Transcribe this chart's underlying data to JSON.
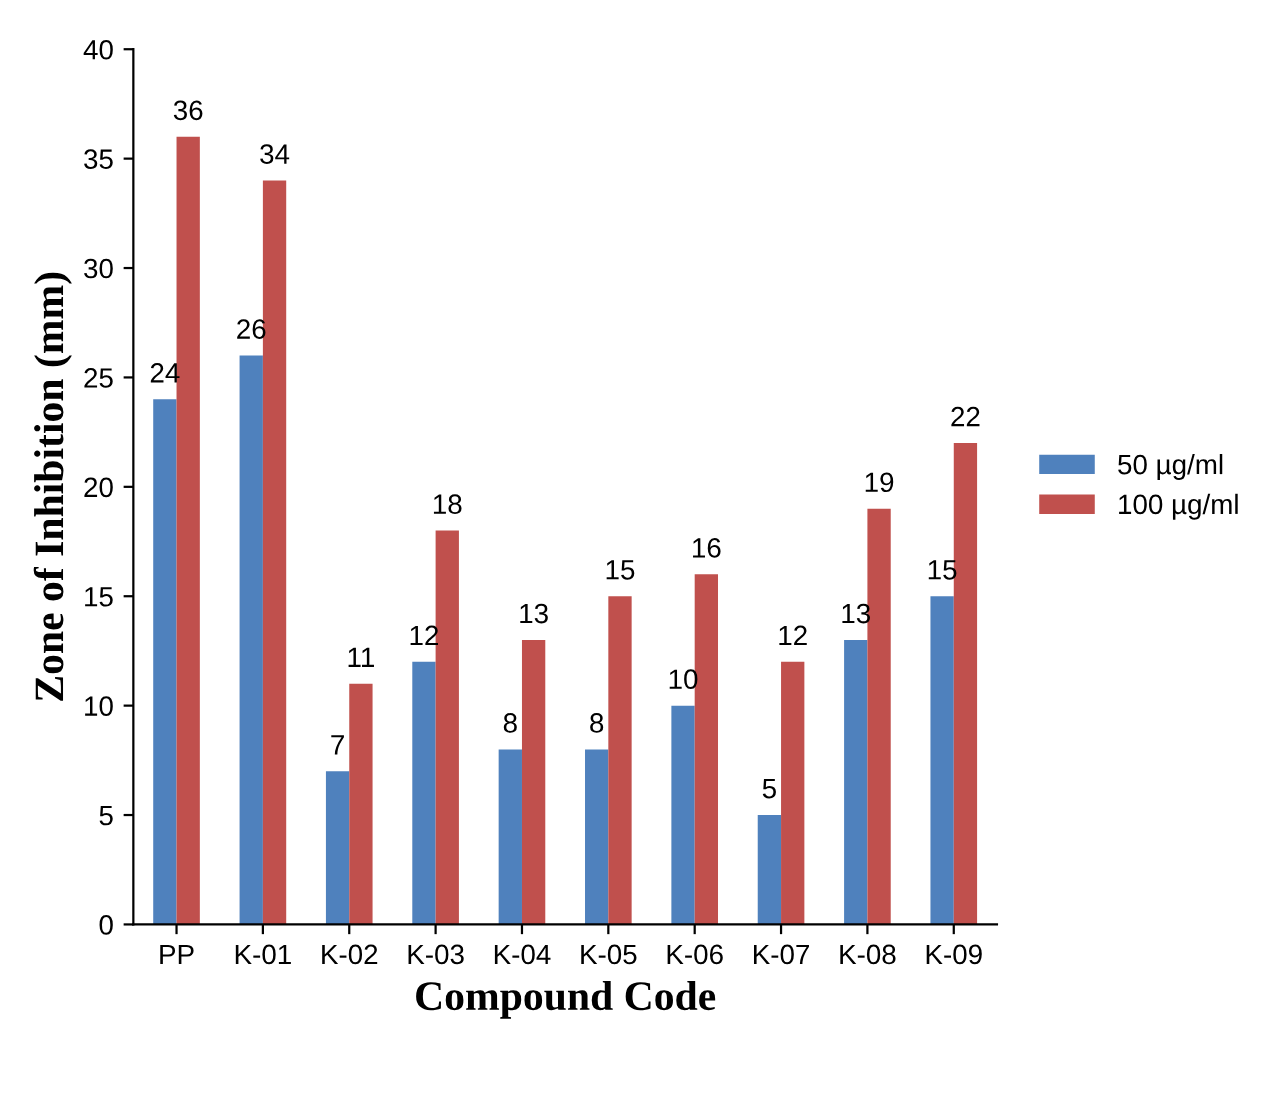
{
  "chart_data": {
    "type": "bar",
    "xlabel": "Compound Code",
    "ylabel": "Zone of Inhibition (mm)",
    "categories": [
      "PP",
      "K-01",
      "K-02",
      "K-03",
      "K-04",
      "K-05",
      "K-06",
      "K-07",
      "K-08",
      "K-09"
    ],
    "series": [
      {
        "name": "50 µg/ml",
        "color": "#4f81bd",
        "values": [
          24,
          26,
          7,
          12,
          8,
          8,
          10,
          5,
          13,
          15
        ]
      },
      {
        "name": "100 µg/ml",
        "color": "#c0504d",
        "values": [
          36,
          34,
          11,
          18,
          13,
          15,
          16,
          12,
          19,
          22
        ]
      }
    ],
    "ylim": [
      0,
      40
    ],
    "yticks": [
      0,
      5,
      10,
      15,
      20,
      25,
      30,
      35,
      40
    ],
    "data_labels": true,
    "legend": "right",
    "grid": false
  }
}
